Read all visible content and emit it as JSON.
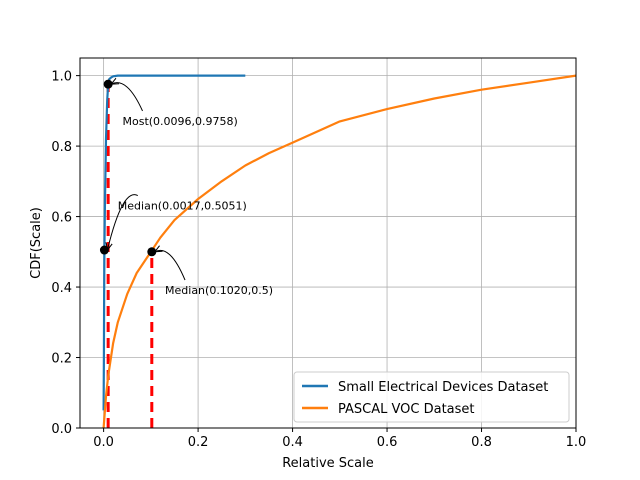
{
  "chart_data": {
    "type": "line",
    "xlabel": "Relative Scale",
    "ylabel": "CDF(Scale)",
    "xlim": [
      -0.05,
      1.0
    ],
    "ylim": [
      0.0,
      1.05
    ],
    "xticks": [
      0.0,
      0.2,
      0.4,
      0.6,
      0.8,
      1.0
    ],
    "xtick_labels": [
      "0.0",
      "0.2",
      "0.4",
      "0.6",
      "0.8",
      "1.0"
    ],
    "yticks": [
      0.0,
      0.2,
      0.4,
      0.6,
      0.8,
      1.0
    ],
    "ytick_labels": [
      "0.0",
      "0.2",
      "0.4",
      "0.6",
      "0.8",
      "1.0"
    ],
    "grid": true,
    "legend_position": "bottom-right",
    "series": [
      {
        "name": "Small Electrical Devices Dataset",
        "color": "#1f77b4",
        "x": [
          0.0,
          0.0005,
          0.001,
          0.0017,
          0.003,
          0.005,
          0.0075,
          0.0096,
          0.012,
          0.016,
          0.02,
          0.03,
          0.05,
          0.1,
          0.2,
          0.3
        ],
        "y": [
          0.05,
          0.2,
          0.35,
          0.5051,
          0.65,
          0.82,
          0.93,
          0.9758,
          0.99,
          0.995,
          0.998,
          1.0,
          1.0,
          1.0,
          1.0,
          1.0
        ]
      },
      {
        "name": "PASCAL VOC Dataset",
        "color": "#ff7f0e",
        "x": [
          0.0,
          0.005,
          0.01,
          0.02,
          0.03,
          0.05,
          0.07,
          0.1,
          0.12,
          0.15,
          0.2,
          0.25,
          0.3,
          0.35,
          0.4,
          0.5,
          0.6,
          0.7,
          0.8,
          0.9,
          1.0
        ],
        "y": [
          0.0,
          0.09,
          0.15,
          0.24,
          0.3,
          0.38,
          0.44,
          0.5,
          0.54,
          0.59,
          0.65,
          0.7,
          0.745,
          0.78,
          0.81,
          0.87,
          0.905,
          0.935,
          0.96,
          0.98,
          1.0
        ]
      }
    ],
    "reference_lines": [
      {
        "x": 0.0096,
        "y_top": 0.9758,
        "color": "#ff0000",
        "style": "dashed"
      },
      {
        "x": 0.102,
        "y_top": 0.5,
        "color": "#ff0000",
        "style": "dashed"
      }
    ],
    "markers": [
      {
        "x": 0.0017,
        "y": 0.5051
      },
      {
        "x": 0.0096,
        "y": 0.9758
      },
      {
        "x": 0.102,
        "y": 0.5
      }
    ],
    "annotations": [
      {
        "text": "Most(0.0096,0.9758)",
        "point": [
          0.0096,
          0.9758
        ],
        "text_at": [
          0.04,
          0.86
        ]
      },
      {
        "text": "Median(0.0017,0.5051)",
        "point": [
          0.0017,
          0.5051
        ],
        "text_at": [
          0.03,
          0.62
        ]
      },
      {
        "text": "Median(0.1020,0.5)",
        "point": [
          0.102,
          0.5
        ],
        "text_at": [
          0.13,
          0.38
        ]
      }
    ]
  }
}
